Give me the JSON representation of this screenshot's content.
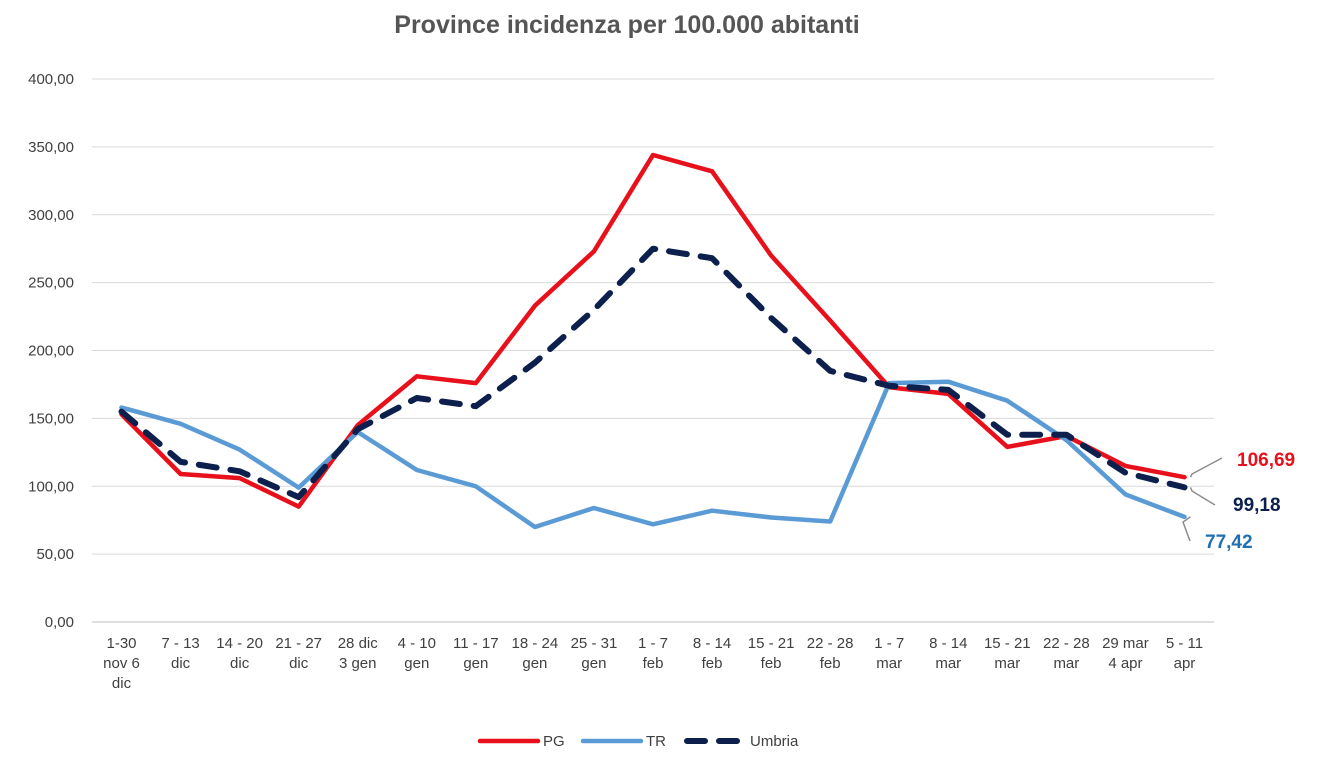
{
  "chart_data": {
    "type": "line",
    "title": "Province incidenza per 100.000 abitanti",
    "xlabel": "",
    "ylabel": "",
    "ylim": [
      0,
      400
    ],
    "y_ticks": [
      "0,00",
      "50,00",
      "100,00",
      "150,00",
      "200,00",
      "250,00",
      "300,00",
      "350,00",
      "400,00"
    ],
    "grid": "horizontal",
    "legend_position": "bottom",
    "categories": [
      [
        "1-30",
        "nov 6",
        "dic"
      ],
      [
        "7 - 13",
        "dic"
      ],
      [
        "14 - 20",
        "dic"
      ],
      [
        "21 - 27",
        "dic"
      ],
      [
        "28 dic",
        "3 gen"
      ],
      [
        "4 - 10",
        "gen"
      ],
      [
        "11 - 17",
        "gen"
      ],
      [
        "18 - 24",
        "gen"
      ],
      [
        "25 - 31",
        "gen"
      ],
      [
        "1 - 7",
        "feb"
      ],
      [
        "8 - 14",
        "feb"
      ],
      [
        "15 - 21",
        "feb"
      ],
      [
        "22 - 28",
        "feb"
      ],
      [
        "1 - 7",
        "mar"
      ],
      [
        "8 - 14",
        "mar"
      ],
      [
        "15 - 21",
        "mar"
      ],
      [
        "22 - 28",
        "mar"
      ],
      [
        "29 mar",
        "4 apr"
      ],
      [
        "5 - 11",
        "apr"
      ]
    ],
    "series": [
      {
        "name": "PG",
        "color": "#e8101a",
        "style": "solid",
        "values": [
          153,
          109,
          106,
          85,
          145,
          181,
          176,
          233,
          273,
          344,
          332,
          270,
          222,
          173,
          168,
          129,
          137,
          115,
          106.69
        ],
        "end_label": "106,69"
      },
      {
        "name": "TR",
        "color": "#5b9bd5",
        "style": "solid",
        "values": [
          158,
          146,
          127,
          99,
          140,
          112,
          100,
          70,
          84,
          72,
          82,
          77,
          74,
          176,
          177,
          163,
          134,
          94,
          77.42
        ],
        "end_label": "77,42",
        "end_label_color": "#1f6fb2"
      },
      {
        "name": "Umbria",
        "color": "#0c1f4d",
        "style": "dashed",
        "values": [
          155,
          118,
          111,
          92,
          142,
          165,
          159,
          191,
          230,
          275,
          268,
          224,
          185,
          174,
          171,
          138,
          138,
          110,
          99.18
        ],
        "end_label": "99,18"
      }
    ]
  }
}
